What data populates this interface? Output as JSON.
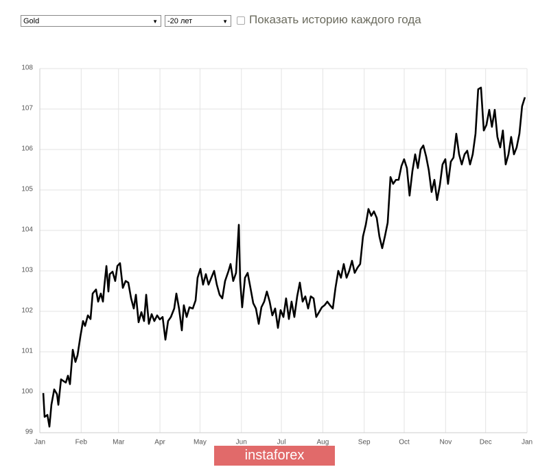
{
  "controls": {
    "instrument": "Gold",
    "period": "-20 лет",
    "checkbox_label": "Показать историю каждого года"
  },
  "watermark": "instaforex",
  "chart_data": {
    "type": "line",
    "color": "#000000",
    "grid": true,
    "xlim": [
      0,
      365
    ],
    "ylim": [
      99,
      108
    ],
    "yticks": [
      99,
      100,
      101,
      102,
      103,
      104,
      105,
      106,
      107,
      108
    ],
    "xticks": [
      {
        "value": 0,
        "label": "Jan"
      },
      {
        "value": 31,
        "label": "Feb"
      },
      {
        "value": 59,
        "label": "Mar"
      },
      {
        "value": 90,
        "label": "Apr"
      },
      {
        "value": 120,
        "label": "May"
      },
      {
        "value": 151,
        "label": "Jun"
      },
      {
        "value": 181,
        "label": "Jul"
      },
      {
        "value": 212,
        "label": "Aug"
      },
      {
        "value": 243,
        "label": "Sep"
      },
      {
        "value": 273,
        "label": "Oct"
      },
      {
        "value": 304,
        "label": "Nov"
      },
      {
        "value": 334,
        "label": "Dec"
      },
      {
        "value": 365,
        "label": "Jan"
      }
    ],
    "x": [
      2.6,
      3.6,
      5.7,
      7.2,
      8.7,
      10.8,
      12.9,
      13.9,
      15.9,
      18,
      19.5,
      21.1,
      22.6,
      24.7,
      26.7,
      28.3,
      30.3,
      32.4,
      33.9,
      36,
      38,
      39.6,
      42.1,
      43.7,
      45.7,
      47.3,
      48.3,
      49.9,
      51.4,
      52.4,
      54.5,
      56.5,
      58.1,
      60.1,
      62.2,
      64.3,
      66.3,
      68.4,
      70.4,
      72,
      74,
      76.1,
      78.1,
      79.7,
      81.7,
      83.8,
      85.8,
      87.9,
      89.9,
      92,
      94.1,
      96.1,
      98.2,
      100.7,
      102.3,
      104.3,
      106.4,
      107.9,
      110,
      112.1,
      114.6,
      116.7,
      118.2,
      120.3,
      122.3,
      124.4,
      126.4,
      128.5,
      130.6,
      132.6,
      134.7,
      136.7,
      138.8,
      141.4,
      142.9,
      144.9,
      147,
      149.1,
      150.1,
      151.6,
      153.7,
      155.7,
      157.8,
      159.9,
      161.9,
      164,
      166,
      168.1,
      170.1,
      172.2,
      174.2,
      176.3,
      178.4,
      180.4,
      182.5,
      184.5,
      186.6,
      188.6,
      190.7,
      192.8,
      194.8,
      196.9,
      198.9,
      201,
      203,
      205.1,
      207.1,
      209.2,
      211.3,
      213.3,
      215.4,
      217.4,
      219.5,
      221.5,
      223.6,
      225.6,
      227.7,
      229.8,
      231.8,
      233.9,
      235.9,
      238,
      240,
      242.1,
      244.2,
      246.2,
      248.3,
      250.3,
      252.4,
      254.4,
      256.5,
      258.5,
      260.6,
      262.7,
      264.7,
      266.8,
      268.8,
      270.9,
      272.9,
      275,
      277,
      279.1,
      281.2,
      283.2,
      285.3,
      287.3,
      289.4,
      291.4,
      293.5,
      295.6,
      297.6,
      299.7,
      301.7,
      303.8,
      305.8,
      307.9,
      309.9,
      312,
      314.1,
      316.1,
      318.2,
      320.2,
      322.3,
      324.3,
      326.4,
      328.4,
      330.5,
      332.6,
      334.6,
      336.7,
      338.7,
      340.8,
      342.8,
      344.9,
      346.9,
      349,
      351.1,
      353.1,
      355.2,
      357.2,
      359.3,
      361.3,
      363.4
    ],
    "values": [
      99.98,
      99.39,
      99.44,
      99.15,
      99.69,
      100.07,
      99.95,
      99.69,
      100.32,
      100.27,
      100.24,
      100.41,
      100.2,
      101.05,
      100.75,
      100.92,
      101.36,
      101.76,
      101.64,
      101.9,
      101.81,
      102.44,
      102.54,
      102.24,
      102.44,
      102.24,
      102.61,
      103.12,
      102.49,
      102.92,
      102.98,
      102.75,
      103.12,
      103.19,
      102.58,
      102.75,
      102.71,
      102.32,
      102.07,
      102.41,
      101.73,
      101.98,
      101.76,
      102.41,
      101.69,
      101.93,
      101.76,
      101.9,
      101.8,
      101.86,
      101.3,
      101.76,
      101.86,
      102.07,
      102.44,
      102.07,
      101.53,
      102.15,
      101.86,
      102.1,
      102.07,
      102.27,
      102.83,
      103.05,
      102.66,
      102.92,
      102.66,
      102.83,
      103.0,
      102.66,
      102.41,
      102.32,
      102.75,
      103.0,
      103.17,
      102.75,
      102.95,
      104.14,
      102.75,
      102.1,
      102.83,
      102.95,
      102.58,
      102.2,
      102.07,
      101.69,
      102.1,
      102.24,
      102.49,
      102.24,
      101.9,
      102.07,
      101.59,
      102.03,
      101.86,
      102.32,
      101.81,
      102.24,
      101.86,
      102.37,
      102.71,
      102.24,
      102.37,
      102.07,
      102.37,
      102.32,
      101.86,
      101.98,
      102.1,
      102.15,
      102.24,
      102.15,
      102.07,
      102.58,
      103.0,
      102.83,
      103.17,
      102.83,
      103.0,
      103.25,
      102.95,
      103.08,
      103.17,
      103.85,
      104.14,
      104.53,
      104.36,
      104.47,
      104.31,
      103.85,
      103.56,
      103.85,
      104.19,
      105.32,
      105.15,
      105.25,
      105.25,
      105.59,
      105.76,
      105.54,
      104.86,
      105.46,
      105.88,
      105.54,
      106.0,
      106.1,
      105.83,
      105.49,
      104.95,
      105.25,
      104.75,
      105.12,
      105.63,
      105.76,
      105.15,
      105.7,
      105.8,
      106.39,
      105.88,
      105.63,
      105.88,
      105.97,
      105.63,
      105.88,
      106.39,
      107.49,
      107.53,
      106.47,
      106.61,
      106.98,
      106.56,
      106.98,
      106.31,
      106.05,
      106.47,
      105.63,
      105.88,
      106.31,
      105.88,
      106.05,
      106.39,
      107.07,
      107.29
    ]
  }
}
